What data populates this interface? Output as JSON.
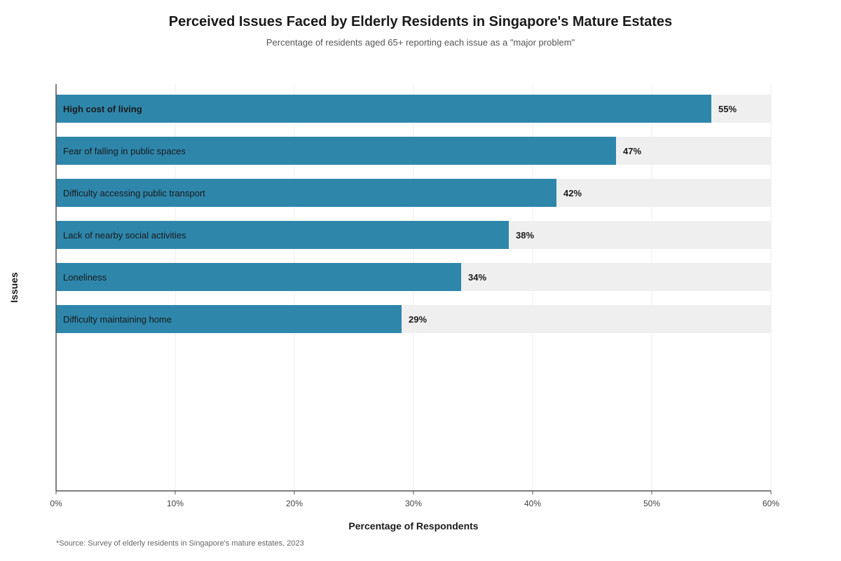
{
  "title": "Perceived Issues Faced by Elderly Residents in Singapore's Mature Estates",
  "subtitle": "Percentage of residents aged 65+ reporting each issue as a \"major problem\"",
  "source": "*Source: Survey of elderly residents in Singapore's mature estates, 2023",
  "colors": {
    "bar": "#2e86ab",
    "track": "#efefef",
    "axis": "#555555",
    "grid": "#ececec"
  },
  "chart_data": {
    "type": "bar",
    "orientation": "horizontal",
    "categories": [
      "High cost of living",
      "Fear of falling in public spaces",
      "Difficulty accessing public transport",
      "Lack of nearby social activities",
      "Loneliness",
      "Difficulty maintaining home"
    ],
    "values": [
      55,
      47,
      42,
      38,
      34,
      29
    ],
    "value_labels": [
      "55%",
      "47%",
      "42%",
      "38%",
      "34%",
      "29%"
    ],
    "emphasized_category": "High cost of living",
    "xlabel": "Percentage of Respondents",
    "ylabel": "Issues",
    "xlim": [
      0,
      60
    ],
    "xticks": [
      0,
      10,
      20,
      30,
      40,
      50,
      60
    ],
    "xtick_labels": [
      "0%",
      "10%",
      "20%",
      "30%",
      "40%",
      "50%",
      "60%"
    ],
    "grid": true,
    "legend": false
  }
}
